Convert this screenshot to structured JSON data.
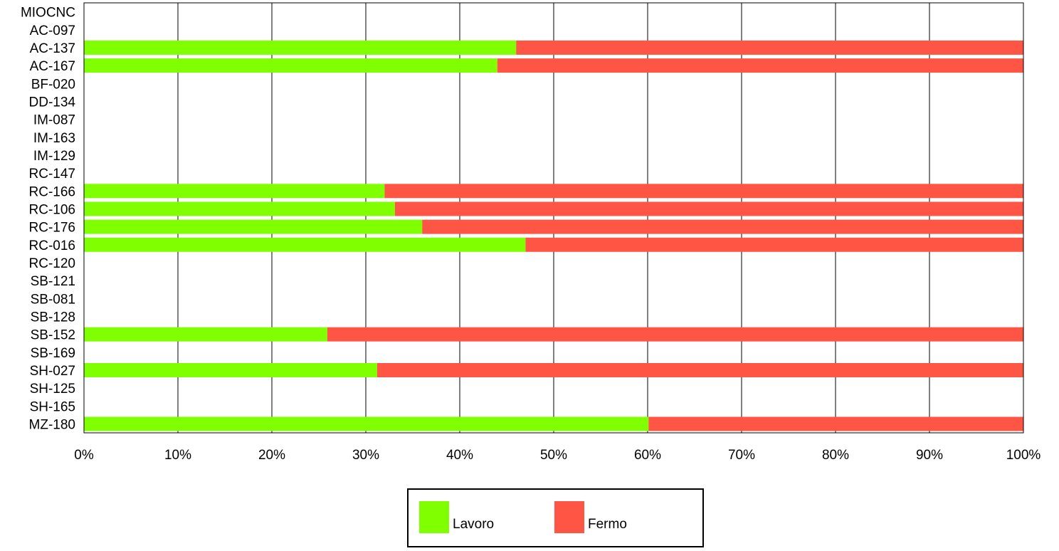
{
  "chart_data": {
    "type": "bar",
    "orientation": "horizontal",
    "stacked": true,
    "categories": [
      "MIOCNC",
      "AC-097",
      "AC-137",
      "AC-167",
      "BF-020",
      "DD-134",
      "IM-087",
      "IM-163",
      "IM-129",
      "RC-147",
      "RC-166",
      "RC-106",
      "RC-176",
      "RC-016",
      "RC-120",
      "SB-121",
      "SB-081",
      "SB-128",
      "SB-152",
      "SB-169",
      "SH-027",
      "SH-125",
      "SH-165",
      "MZ-180"
    ],
    "series": [
      {
        "name": "Lavoro",
        "color": "#80ff00",
        "values": [
          0,
          0,
          46,
          44,
          0,
          0,
          0,
          0,
          0,
          0,
          32,
          33.1,
          36,
          47,
          0,
          0,
          0,
          0,
          25.9,
          0,
          31.2,
          0,
          0,
          60.1
        ]
      },
      {
        "name": "Fermo",
        "color": "#ff5544",
        "values": [
          0,
          0,
          54,
          56,
          0,
          0,
          0,
          0,
          0,
          0,
          68,
          66.9,
          64,
          53,
          0,
          0,
          0,
          0,
          74.1,
          0,
          68.8,
          0,
          0,
          39.9
        ]
      }
    ],
    "x_ticks": [
      "0%",
      "10%",
      "20%",
      "30%",
      "40%",
      "50%",
      "60%",
      "70%",
      "80%",
      "90%",
      "100%"
    ],
    "xlim": [
      0,
      100
    ],
    "grid": true,
    "legend_position": "bottom-center",
    "title": "",
    "xlabel": "",
    "ylabel": ""
  }
}
